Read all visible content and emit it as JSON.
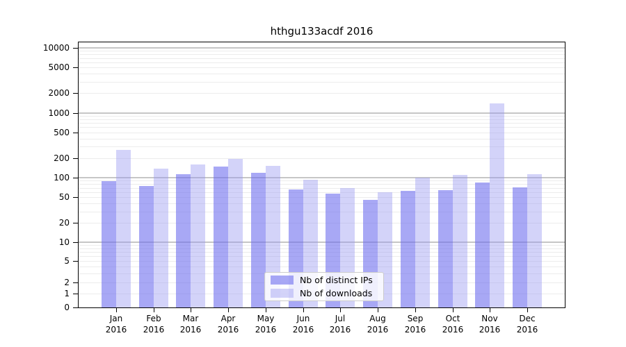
{
  "title": "hthgu133acdf 2016",
  "chart_data": {
    "type": "bar",
    "title": "hthgu133acdf 2016",
    "categories": [
      "Jan",
      "Feb",
      "Mar",
      "Apr",
      "May",
      "Jun",
      "Jul",
      "Aug",
      "Sep",
      "Oct",
      "Nov",
      "Dec"
    ],
    "category_year": "2016",
    "series": [
      {
        "name": "Nb of distinct IPs",
        "color": "rgba(110,110,238,0.60)",
        "values": [
          88,
          75,
          113,
          148,
          119,
          66,
          57,
          46,
          62,
          65,
          85,
          71
        ]
      },
      {
        "name": "Nb of downloads",
        "color": "rgba(150,150,240,0.42)",
        "values": [
          265,
          137,
          160,
          193,
          152,
          93,
          69,
          60,
          100,
          110,
          1400,
          113
        ]
      }
    ],
    "xlabel": "",
    "ylabel": "",
    "yscale": "asinh",
    "yscale_linear_width": 2,
    "ylim": [
      0,
      12200
    ],
    "yticks": [
      0,
      1,
      2,
      5,
      10,
      20,
      50,
      100,
      200,
      500,
      1000,
      2000,
      5000,
      10000
    ],
    "grid": true,
    "legend_position": "lower center"
  },
  "colors": {
    "bar_distinct_ips": "rgba(110,110,238,0.60)",
    "bar_downloads": "rgba(150,150,240,0.42)",
    "grid_minor": "#ececec",
    "grid_major": "#c6c6c6",
    "spine": "#000000"
  }
}
